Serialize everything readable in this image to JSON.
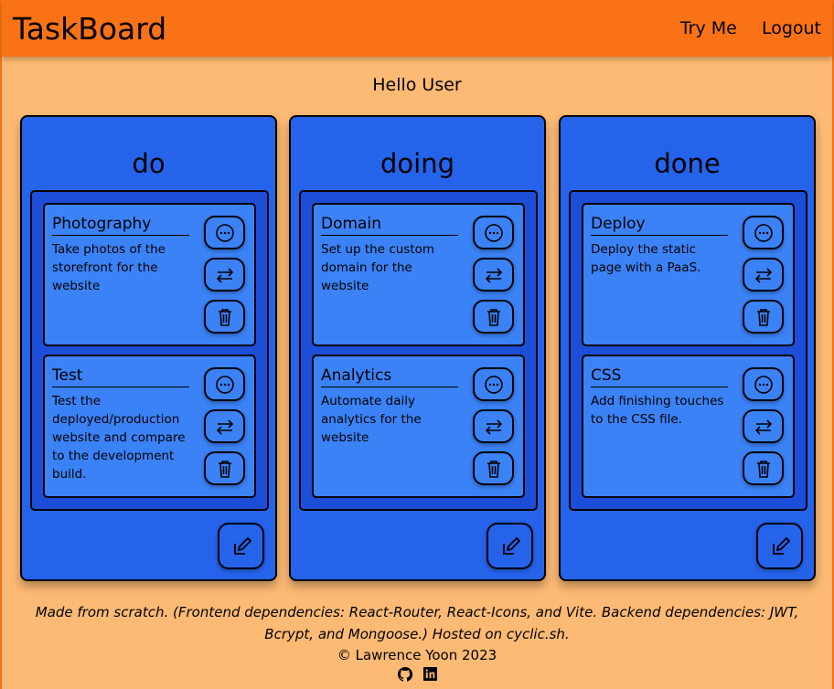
{
  "header": {
    "title": "TaskBoard",
    "nav": [
      "Try Me",
      "Logout"
    ]
  },
  "greeting": "Hello User",
  "columns": [
    {
      "title": "do",
      "cards": [
        {
          "title": "Photography",
          "description": "Take photos of the storefront for the website"
        },
        {
          "title": "Test",
          "description": "Test the deployed/production website and compare to the development build."
        }
      ]
    },
    {
      "title": "doing",
      "cards": [
        {
          "title": "Domain",
          "description": "Set up the custom domain for the website"
        },
        {
          "title": "Analytics",
          "description": "Automate daily analytics for the website"
        }
      ]
    },
    {
      "title": "done",
      "cards": [
        {
          "title": "Deploy",
          "description": "Deploy the static page with a PaaS."
        },
        {
          "title": "CSS",
          "description": "Add finishing touches to the CSS file."
        }
      ]
    }
  ],
  "footer": {
    "credits": "Made from scratch. (Frontend dependencies: React-Router, React-Icons, and Vite. Backend dependencies: JWT, Bcrypt, and Mongoose.) Hosted on cyclic.sh.",
    "copyright": "© Lawrence Yoon 2023",
    "icons": [
      "github-icon",
      "linkedin-icon"
    ]
  },
  "colors": {
    "header": "#f97316",
    "background": "#fdba74",
    "column": "#2563eb",
    "list": "#1d4ed8",
    "card": "#3b82f6"
  }
}
